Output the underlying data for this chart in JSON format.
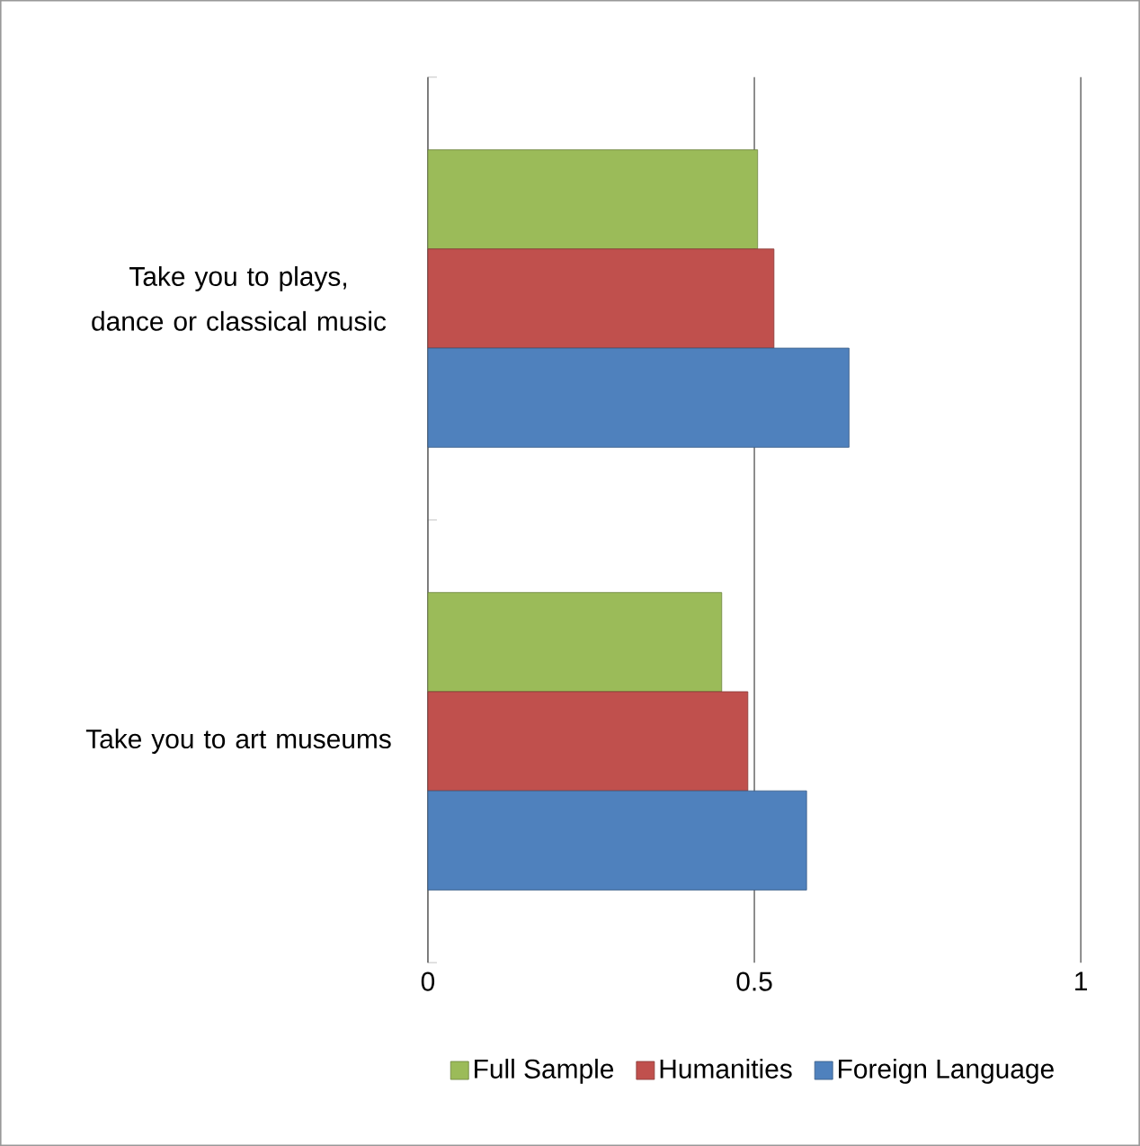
{
  "chart_data": {
    "type": "bar",
    "orientation": "horizontal",
    "categories": [
      "Take you to plays, dance or classical music",
      "Take you to art museums"
    ],
    "series": [
      {
        "name": "Full Sample",
        "color": "#9bbb59",
        "values": [
          0.505,
          0.45
        ]
      },
      {
        "name": "Humanities",
        "color": "#c0504d",
        "values": [
          0.53,
          0.49
        ]
      },
      {
        "name": "Foreign Language",
        "color": "#4f81bd",
        "values": [
          0.645,
          0.58
        ]
      }
    ],
    "xlim": [
      0,
      1
    ],
    "xticks": [
      0,
      0.5,
      1
    ],
    "grid": "x",
    "legend": "bottom"
  }
}
